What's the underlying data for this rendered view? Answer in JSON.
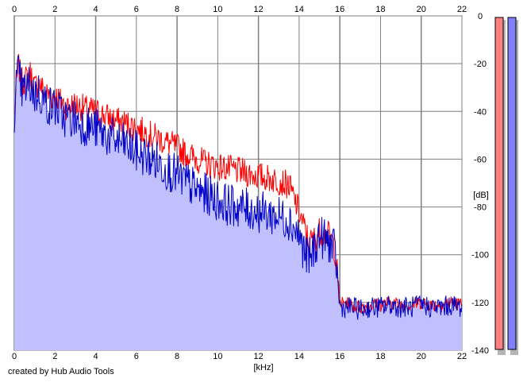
{
  "chart_data": {
    "type": "line",
    "title": "",
    "xlabel": "[kHz]",
    "ylabel": "[dB]",
    "xlim": [
      0,
      22
    ],
    "ylim": [
      -140,
      0
    ],
    "x_ticks": [
      "0",
      "2",
      "4",
      "6",
      "8",
      "10",
      "12",
      "14",
      "16",
      "18",
      "20",
      "22"
    ],
    "y_ticks": [
      "0",
      "-20",
      "-40",
      "-60",
      "-80",
      "-100",
      "-120",
      "-140"
    ],
    "grid": true,
    "series": [
      {
        "color": "#ff0000",
        "x": [
          0.0,
          0.1,
          0.2,
          0.3,
          0.4,
          0.6,
          0.8,
          1.0,
          1.2,
          1.5,
          1.8,
          2.0,
          2.3,
          2.6,
          3.0,
          3.5,
          4.0,
          4.5,
          5.0,
          5.5,
          6.0,
          6.5,
          7.0,
          7.5,
          8.0,
          8.5,
          9.0,
          9.5,
          10.0,
          10.5,
          11.0,
          11.5,
          12.0,
          12.5,
          13.0,
          13.5,
          14.0,
          14.3,
          14.5,
          14.8,
          15.0,
          15.3,
          15.5,
          15.7,
          15.8,
          16.0,
          16.5,
          17.0,
          17.5,
          18.0,
          18.5,
          19.0,
          19.5,
          20.0,
          20.5,
          21.0,
          21.5,
          22.0
        ],
        "values": [
          -42,
          -30,
          -20,
          -25,
          -28,
          -26,
          -24,
          -30,
          -28,
          -32,
          -34,
          -33,
          -36,
          -38,
          -37,
          -39,
          -40,
          -42,
          -44,
          -45,
          -47,
          -49,
          -51,
          -53,
          -55,
          -58,
          -60,
          -62,
          -63,
          -64,
          -65,
          -66,
          -67,
          -68,
          -69,
          -71,
          -82,
          -90,
          -95,
          -93,
          -90,
          -91,
          -92,
          -96,
          -100,
          -120,
          -121,
          -122,
          -121,
          -121,
          -120,
          -121,
          -121,
          -120,
          -121,
          -121,
          -120,
          -121
        ]
      },
      {
        "color": "#0000c8",
        "x": [
          0.0,
          0.1,
          0.2,
          0.3,
          0.4,
          0.6,
          0.8,
          1.0,
          1.2,
          1.5,
          1.8,
          2.0,
          2.3,
          2.6,
          3.0,
          3.5,
          4.0,
          4.5,
          5.0,
          5.5,
          6.0,
          6.5,
          7.0,
          7.5,
          8.0,
          8.5,
          9.0,
          9.5,
          10.0,
          10.5,
          11.0,
          11.5,
          12.0,
          12.5,
          13.0,
          13.5,
          14.0,
          14.3,
          14.5,
          14.8,
          15.0,
          15.3,
          15.5,
          15.7,
          15.8,
          16.0,
          16.5,
          17.0,
          17.5,
          18.0,
          18.5,
          19.0,
          19.5,
          20.0,
          20.5,
          21.0,
          21.5,
          22.0
        ],
        "values": [
          -40,
          -28,
          -24,
          -28,
          -32,
          -30,
          -29,
          -33,
          -32,
          -36,
          -38,
          -38,
          -41,
          -43,
          -43,
          -46,
          -47,
          -50,
          -52,
          -54,
          -57,
          -59,
          -61,
          -64,
          -67,
          -70,
          -73,
          -75,
          -77,
          -79,
          -80,
          -81,
          -82,
          -83,
          -84,
          -85,
          -92,
          -100,
          -102,
          -96,
          -92,
          -94,
          -95,
          -98,
          -101,
          -122,
          -122,
          -123,
          -122,
          -122,
          -121,
          -122,
          -122,
          -121,
          -122,
          -122,
          -121,
          -122
        ]
      }
    ]
  },
  "meters": [
    {
      "color": "#ff8080"
    },
    {
      "color": "#8080ff"
    }
  ],
  "footer": {
    "credit": "created by Hub Audio Tools"
  }
}
